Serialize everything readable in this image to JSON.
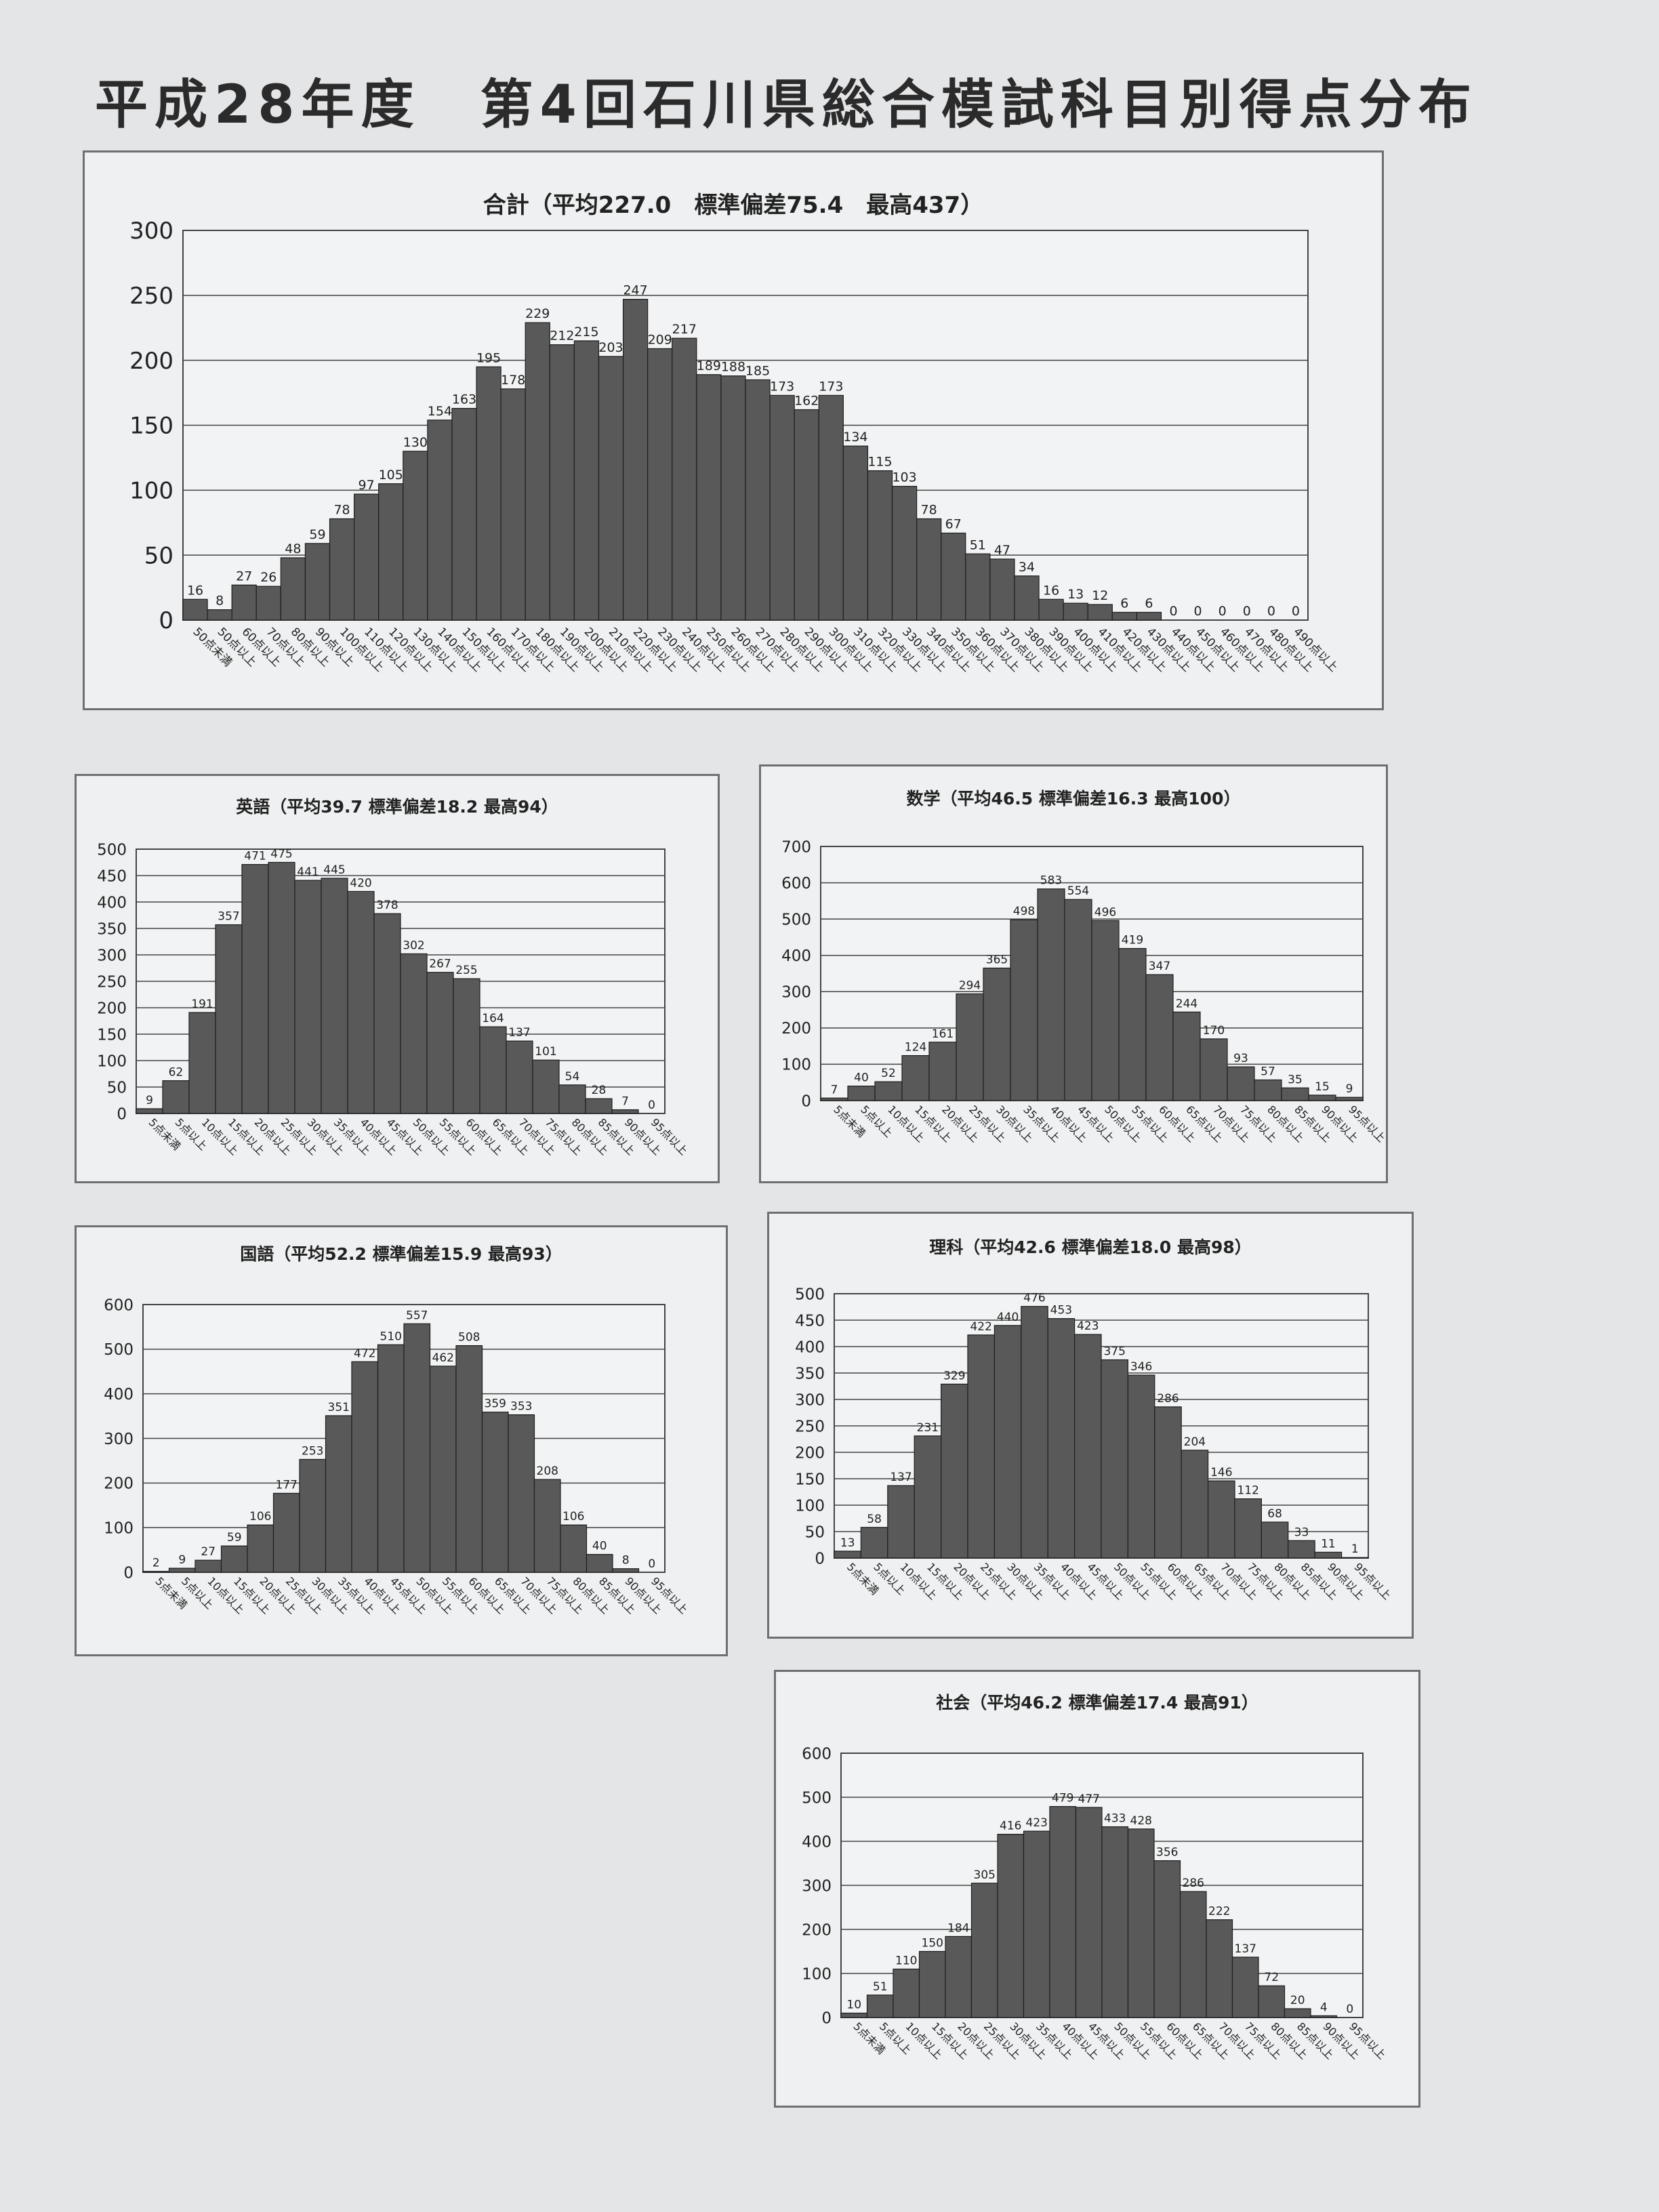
{
  "page": {
    "title": "平成28年度　第4回石川県総合模試科目別得点分布"
  },
  "colors": {
    "bar": "#595959",
    "grid": "#444444",
    "text": "#222222"
  },
  "chart_data": [
    {
      "id": "total",
      "type": "bar",
      "title": "合計（平均227.0　標準偏差75.4　最高437）",
      "ylim": [
        0,
        300
      ],
      "yticks": [
        0,
        50,
        100,
        150,
        200,
        250,
        300
      ],
      "categories": [
        "50点未満",
        "50点以上",
        "60点以上",
        "70点以上",
        "80点以上",
        "90点以上",
        "100点以上",
        "110点以上",
        "120点以上",
        "130点以上",
        "140点以上",
        "150点以上",
        "160点以上",
        "170点以上",
        "180点以上",
        "190点以上",
        "200点以上",
        "210点以上",
        "220点以上",
        "230点以上",
        "240点以上",
        "250点以上",
        "260点以上",
        "270点以上",
        "280点以上",
        "290点以上",
        "300点以上",
        "310点以上",
        "320点以上",
        "330点以上",
        "340点以上",
        "350点以上",
        "360点以上",
        "370点以上",
        "380点以上",
        "390点以上",
        "400点以上",
        "410点以上",
        "420点以上",
        "430点以上",
        "440点以上",
        "450点以上",
        "460点以上",
        "470点以上",
        "480点以上",
        "490点以上"
      ],
      "values": [
        16,
        8,
        27,
        26,
        48,
        59,
        78,
        97,
        105,
        130,
        154,
        163,
        195,
        178,
        229,
        212,
        215,
        203,
        247,
        209,
        217,
        189,
        188,
        185,
        173,
        162,
        173,
        134,
        115,
        103,
        78,
        67,
        51,
        47,
        34,
        16,
        13,
        12,
        6,
        6,
        0,
        0,
        0,
        0,
        0,
        0
      ],
      "grid": true
    },
    {
      "id": "english",
      "type": "bar",
      "title": "英語（平均39.7 標準偏差18.2 最高94）",
      "ylim": [
        0,
        500
      ],
      "yticks": [
        0,
        50,
        100,
        150,
        200,
        250,
        300,
        350,
        400,
        450,
        500
      ],
      "categories": [
        "5点未満",
        "5点以上",
        "10点以上",
        "15点以上",
        "20点以上",
        "25点以上",
        "30点以上",
        "35点以上",
        "40点以上",
        "45点以上",
        "50点以上",
        "55点以上",
        "60点以上",
        "65点以上",
        "70点以上",
        "75点以上",
        "80点以上",
        "85点以上",
        "90点以上",
        "95点以上"
      ],
      "values": [
        9,
        62,
        191,
        357,
        471,
        475,
        441,
        445,
        420,
        378,
        302,
        267,
        255,
        164,
        137,
        101,
        54,
        28,
        7,
        0
      ],
      "grid": true
    },
    {
      "id": "math",
      "type": "bar",
      "title": "数学（平均46.5 標準偏差16.3 最高100）",
      "ylim": [
        0,
        700
      ],
      "yticks": [
        0,
        100,
        200,
        300,
        400,
        500,
        600,
        700
      ],
      "categories": [
        "5点未満",
        "5点以上",
        "10点以上",
        "15点以上",
        "20点以上",
        "25点以上",
        "30点以上",
        "35点以上",
        "40点以上",
        "45点以上",
        "50点以上",
        "55点以上",
        "60点以上",
        "65点以上",
        "70点以上",
        "75点以上",
        "80点以上",
        "85点以上",
        "90点以上",
        "95点以上"
      ],
      "values": [
        7,
        40,
        52,
        124,
        161,
        294,
        365,
        498,
        583,
        554,
        496,
        419,
        347,
        244,
        170,
        93,
        57,
        35,
        15,
        9
      ],
      "grid": true
    },
    {
      "id": "japanese",
      "type": "bar",
      "title": "国語（平均52.2 標準偏差15.9 最高93）",
      "ylim": [
        0,
        600
      ],
      "yticks": [
        0,
        100,
        200,
        300,
        400,
        500,
        600
      ],
      "categories": [
        "5点未満",
        "5点以上",
        "10点以上",
        "15点以上",
        "20点以上",
        "25点以上",
        "30点以上",
        "35点以上",
        "40点以上",
        "45点以上",
        "50点以上",
        "55点以上",
        "60点以上",
        "65点以上",
        "70点以上",
        "75点以上",
        "80点以上",
        "85点以上",
        "90点以上",
        "95点以上"
      ],
      "values": [
        2,
        9,
        27,
        59,
        106,
        177,
        253,
        351,
        472,
        510,
        557,
        462,
        508,
        359,
        353,
        208,
        106,
        40,
        8,
        0
      ],
      "grid": true
    },
    {
      "id": "science",
      "type": "bar",
      "title": "理科（平均42.6 標準偏差18.0 最高98）",
      "ylim": [
        0,
        500
      ],
      "yticks": [
        0,
        50,
        100,
        150,
        200,
        250,
        300,
        350,
        400,
        450,
        500
      ],
      "categories": [
        "5点未満",
        "5点以上",
        "10点以上",
        "15点以上",
        "20点以上",
        "25点以上",
        "30点以上",
        "35点以上",
        "40点以上",
        "45点以上",
        "50点以上",
        "55点以上",
        "60点以上",
        "65点以上",
        "70点以上",
        "75点以上",
        "80点以上",
        "85点以上",
        "90点以上",
        "95点以上"
      ],
      "values": [
        13,
        58,
        137,
        231,
        329,
        422,
        440,
        476,
        453,
        423,
        375,
        346,
        286,
        204,
        146,
        112,
        68,
        33,
        11,
        1
      ],
      "grid": true
    },
    {
      "id": "social",
      "type": "bar",
      "title": "社会（平均46.2 標準偏差17.4 最高91）",
      "ylim": [
        0,
        600
      ],
      "yticks": [
        0,
        100,
        200,
        300,
        400,
        500,
        600
      ],
      "categories": [
        "5点未満",
        "5点以上",
        "10点以上",
        "15点以上",
        "20点以上",
        "25点以上",
        "30点以上",
        "35点以上",
        "40点以上",
        "45点以上",
        "50点以上",
        "55点以上",
        "60点以上",
        "65点以上",
        "70点以上",
        "75点以上",
        "80点以上",
        "85点以上",
        "90点以上",
        "95点以上"
      ],
      "values": [
        10,
        51,
        110,
        150,
        184,
        305,
        416,
        423,
        479,
        477,
        433,
        428,
        356,
        286,
        222,
        137,
        72,
        20,
        4,
        0
      ],
      "grid": true
    }
  ]
}
